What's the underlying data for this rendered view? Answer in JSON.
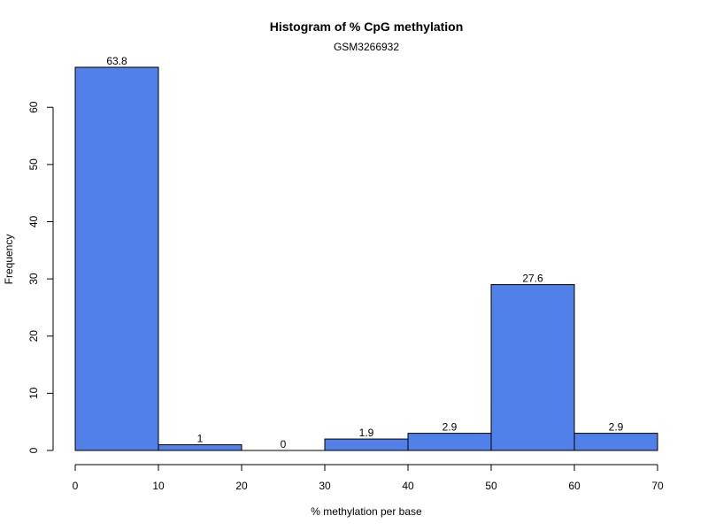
{
  "chart_data": {
    "type": "bar",
    "title": "Histogram of % CpG methylation",
    "subtitle": "GSM3266932",
    "xlabel": "% methylation per base",
    "ylabel": "Frequency",
    "bins": [
      {
        "start": 0,
        "end": 10,
        "count": 67,
        "label": "63.8"
      },
      {
        "start": 10,
        "end": 20,
        "count": 1,
        "label": "1"
      },
      {
        "start": 20,
        "end": 30,
        "count": 0,
        "label": "0"
      },
      {
        "start": 30,
        "end": 40,
        "count": 2,
        "label": "1.9"
      },
      {
        "start": 40,
        "end": 50,
        "count": 3,
        "label": "2.9"
      },
      {
        "start": 50,
        "end": 60,
        "count": 29,
        "label": "27.6"
      },
      {
        "start": 60,
        "end": 70,
        "count": 3,
        "label": "2.9"
      }
    ],
    "xlim": [
      0,
      70
    ],
    "ylim": [
      0,
      67
    ],
    "x_ticks": [
      "0",
      "10",
      "20",
      "30",
      "40",
      "50",
      "60",
      "70"
    ],
    "y_ticks": [
      "0",
      "10",
      "20",
      "30",
      "40",
      "50",
      "60"
    ],
    "bar_color": "#5080E8",
    "grid": false,
    "legend": "none"
  }
}
